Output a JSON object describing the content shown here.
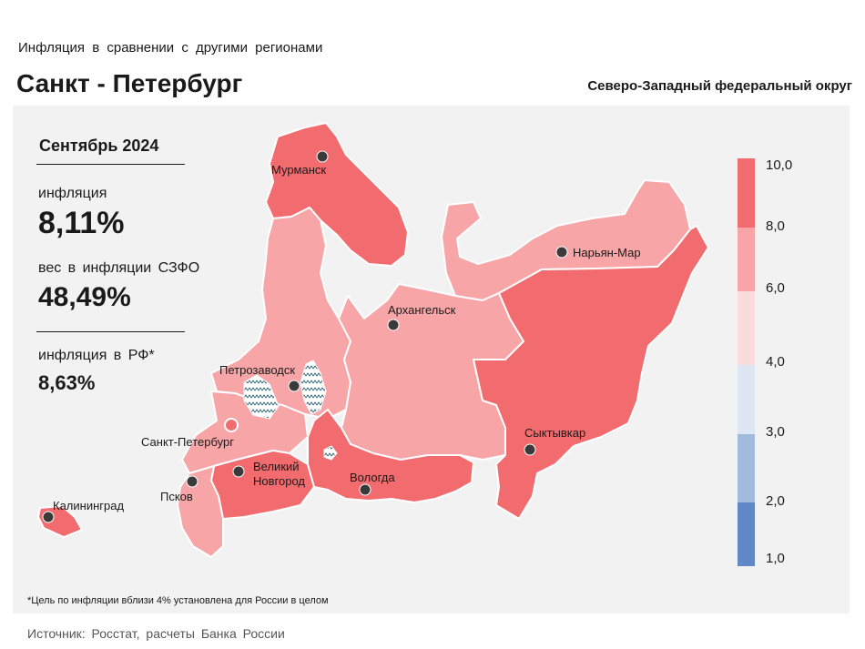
{
  "header": {
    "subtitle": "Инфляция в сравнении с другими регионами",
    "title": "Санкт - Петербург",
    "district": "Северо-Западный федеральный округ"
  },
  "stats": {
    "period": "Сентябрь 2024",
    "inflation_label": "инфляция",
    "inflation_value": "8,11%",
    "weight_label": "вес в инфляции СЗФО",
    "weight_value": "48,49%",
    "rf_label": "инфляция в РФ*",
    "rf_value": "8,63%"
  },
  "map": {
    "cities": [
      {
        "name": "Мурманск"
      },
      {
        "name": "Нарьян-Мар"
      },
      {
        "name": "Архангельск"
      },
      {
        "name": "Петрозаводск"
      },
      {
        "name": "Санкт-Петербург"
      },
      {
        "name": "Сыктывкар"
      },
      {
        "name": "Великий"
      },
      {
        "name": "Новгород"
      },
      {
        "name": "Псков"
      },
      {
        "name": "Вологда"
      },
      {
        "name": "Калининград"
      }
    ],
    "region_classes": {
      "Мурманская область": "8-10",
      "Ненецкий АО": "6-8",
      "Архангельская область": "6-8",
      "Республика Карелия": "6-8",
      "Ленинградская область": "6-8",
      "Республика Коми": "8-10",
      "Новгородская область": "8-10",
      "Псковская область": "6-8",
      "Вологодская область": "8-10",
      "Калининградская область": "8-10"
    }
  },
  "legend": {
    "ticks": [
      "10,0",
      "8,0",
      "6,0",
      "4,0",
      "3,0",
      "2,0",
      "1,0"
    ],
    "colors": [
      "#f26b6e",
      "#f7a5a7",
      "#fadcdd",
      "#dde6f3",
      "#a2badb",
      "#6088c6"
    ]
  },
  "footnote": "*Цель по инфляции вблизи 4% установлена для России в целом",
  "source": "Источник: Росстат, расчеты Банка России"
}
